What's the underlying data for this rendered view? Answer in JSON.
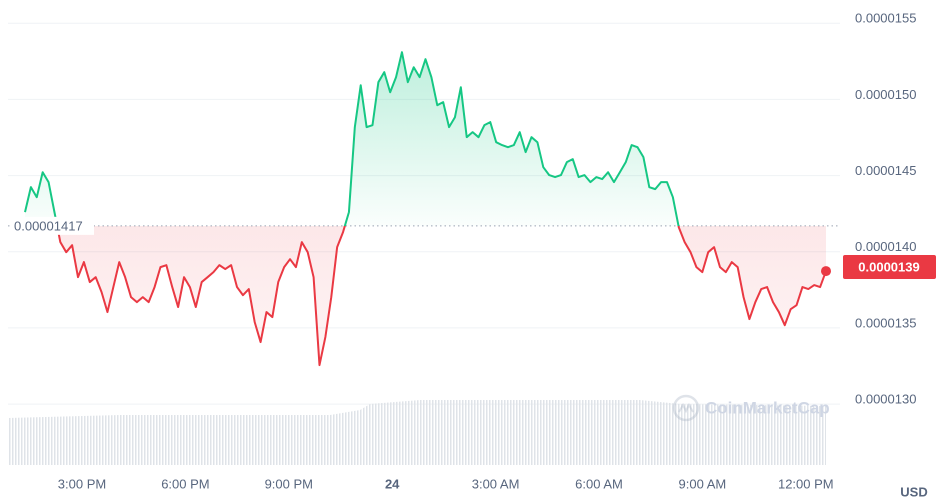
{
  "chart_data": {
    "type": "line",
    "values": [
      1.426e-05,
      1.4424e-05,
      1.4358e-05,
      1.4522e-05,
      1.4457e-05,
      1.426e-05,
      1.4063e-05,
      1.3997e-05,
      1.4043e-05,
      1.3833e-05,
      1.3932e-05,
      1.3801e-05,
      1.3833e-05,
      1.3735e-05,
      1.3604e-05,
      1.3768e-05,
      1.3932e-05,
      1.3833e-05,
      1.3702e-05,
      1.3669e-05,
      1.3702e-05,
      1.3669e-05,
      1.3768e-05,
      1.3899e-05,
      1.3912e-05,
      1.3768e-05,
      1.3637e-05,
      1.3833e-05,
      1.3768e-05,
      1.3637e-05,
      1.3801e-05,
      1.3833e-05,
      1.3866e-05,
      1.3912e-05,
      1.3886e-05,
      1.3912e-05,
      1.3768e-05,
      1.3715e-05,
      1.3755e-05,
      1.3538e-05,
      1.3407e-05,
      1.3604e-05,
      1.3571e-05,
      1.3801e-05,
      1.3899e-05,
      1.3951e-05,
      1.3899e-05,
      1.4063e-05,
      1.3997e-05,
      1.3833e-05,
      1.3256e-05,
      1.344e-05,
      1.3702e-05,
      1.403e-05,
      1.4129e-05,
      1.426e-05,
      1.4818e-05,
      1.5093e-05,
      1.4818e-05,
      1.4831e-05,
      1.5113e-05,
      1.5179e-05,
      1.5047e-05,
      1.5146e-05,
      1.531e-05,
      1.5113e-05,
      1.5211e-05,
      1.5146e-05,
      1.5264e-05,
      1.5146e-05,
      1.4962e-05,
      1.4982e-05,
      1.4818e-05,
      1.4883e-05,
      1.508e-05,
      1.4752e-05,
      1.4785e-05,
      1.4752e-05,
      1.4831e-05,
      1.4851e-05,
      1.4719e-05,
      1.47e-05,
      1.4686e-05,
      1.47e-05,
      1.4785e-05,
      1.4654e-05,
      1.4752e-05,
      1.4719e-05,
      1.4555e-05,
      1.4503e-05,
      1.449e-05,
      1.4503e-05,
      1.4588e-05,
      1.4608e-05,
      1.449e-05,
      1.4503e-05,
      1.4457e-05,
      1.449e-05,
      1.4477e-05,
      1.4522e-05,
      1.4457e-05,
      1.4522e-05,
      1.4588e-05,
      1.47e-05,
      1.4686e-05,
      1.4621e-05,
      1.4424e-05,
      1.4411e-05,
      1.4457e-05,
      1.4457e-05,
      1.4358e-05,
      1.4161e-05,
      1.4063e-05,
      1.3997e-05,
      1.3899e-05,
      1.3866e-05,
      1.3997e-05,
      1.403e-05,
      1.3899e-05,
      1.3866e-05,
      1.3932e-05,
      1.3899e-05,
      1.3702e-05,
      1.3558e-05,
      1.3669e-05,
      1.3755e-05,
      1.3768e-05,
      1.3669e-05,
      1.3604e-05,
      1.3518e-05,
      1.3623e-05,
      1.3649e-05,
      1.3768e-05,
      1.3755e-05,
      1.3781e-05,
      1.3768e-05,
      1.3873e-05
    ],
    "x_labels": [
      "3:00 PM",
      "6:00 PM",
      "9:00 PM",
      "24",
      "3:00 AM",
      "6:00 AM",
      "9:00 AM",
      "12:00 PM"
    ],
    "ylim": [
      1.26e-05,
      1.56e-05
    ],
    "yticks": [
      {
        "value": 1.3e-05,
        "label": "0.0000130"
      },
      1.35e-05,
      {
        "value": 1.4e-05,
        "label": "0.0000140"
      },
      1.45e-05,
      {
        "value": 1.5e-05,
        "label": "0.0000150"
      },
      1.55e-05
    ],
    "grid": true,
    "baseline": 1.417e-05,
    "last_price": 1.39e-05,
    "colors": {
      "up": "#16c784",
      "down": "#ea3943"
    },
    "y_unit": "USD",
    "watermark": "CoinMarketCap"
  }
}
